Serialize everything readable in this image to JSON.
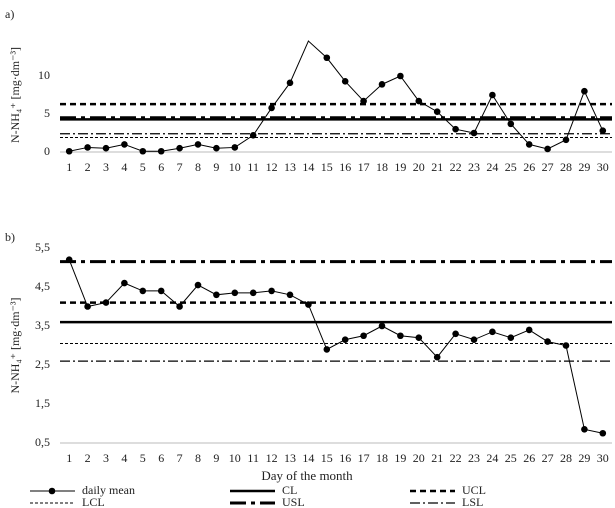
{
  "xlabel": "Day of the month",
  "legend": [
    "daily mean",
    "CL",
    "UCL",
    "LCL",
    "USL",
    "LSL"
  ],
  "chart_data": [
    {
      "type": "line",
      "label": "a)",
      "ylabel": "N-NH₄⁺ [mg·dm⁻³]",
      "categories": [
        "1",
        "2",
        "3",
        "4",
        "5",
        "6",
        "7",
        "8",
        "9",
        "10",
        "11",
        "12",
        "13",
        "14",
        "15",
        "16",
        "17",
        "18",
        "19",
        "20",
        "21",
        "22",
        "23",
        "24",
        "25",
        "26",
        "27",
        "28",
        "29",
        "30"
      ],
      "values": [
        0.1,
        0.6,
        0.5,
        1.0,
        0.1,
        0.1,
        0.5,
        1.0,
        0.5,
        0.6,
        2.2,
        5.8,
        9.1,
        14.6,
        12.4,
        9.3,
        6.7,
        8.9,
        10.0,
        6.7,
        5.3,
        3.0,
        2.5,
        7.5,
        3.7,
        1.0,
        0.4,
        1.6,
        8.0,
        2.8
      ],
      "limits": [
        4.3,
        6.3,
        1.9,
        4.5,
        2.4
      ],
      "ylim": [
        0,
        15
      ],
      "yticks": [
        0,
        5,
        10
      ]
    },
    {
      "type": "line",
      "label": "b)",
      "ylabel": "N-NH₄⁺ [mg·dm⁻³]",
      "categories": [
        "1",
        "2",
        "3",
        "4",
        "5",
        "6",
        "7",
        "8",
        "9",
        "10",
        "11",
        "12",
        "13",
        "14",
        "15",
        "16",
        "17",
        "18",
        "19",
        "20",
        "21",
        "22",
        "23",
        "24",
        "25",
        "26",
        "27",
        "28",
        "29",
        "30"
      ],
      "values": [
        5.2,
        4.0,
        4.1,
        4.6,
        4.4,
        4.4,
        4.0,
        4.55,
        4.3,
        4.35,
        4.35,
        4.4,
        4.3,
        4.05,
        2.9,
        3.15,
        3.25,
        3.5,
        3.25,
        3.2,
        2.7,
        3.3,
        3.15,
        3.35,
        3.2,
        3.4,
        3.1,
        3.0,
        0.85,
        0.75
      ],
      "limits": [
        3.6,
        4.1,
        3.05,
        5.15,
        2.6
      ],
      "ylim": [
        0.5,
        5.5
      ],
      "yticks": [
        {
          "value": 0.5,
          "label": "0,5"
        },
        {
          "value": 1.5,
          "label": "1,5"
        },
        {
          "value": 2.5,
          "label": "2,5"
        },
        {
          "value": 3.5,
          "label": "3,5"
        },
        {
          "value": 4.5,
          "label": "4,5"
        },
        {
          "value": 5.5,
          "label": "5,5"
        }
      ]
    }
  ]
}
